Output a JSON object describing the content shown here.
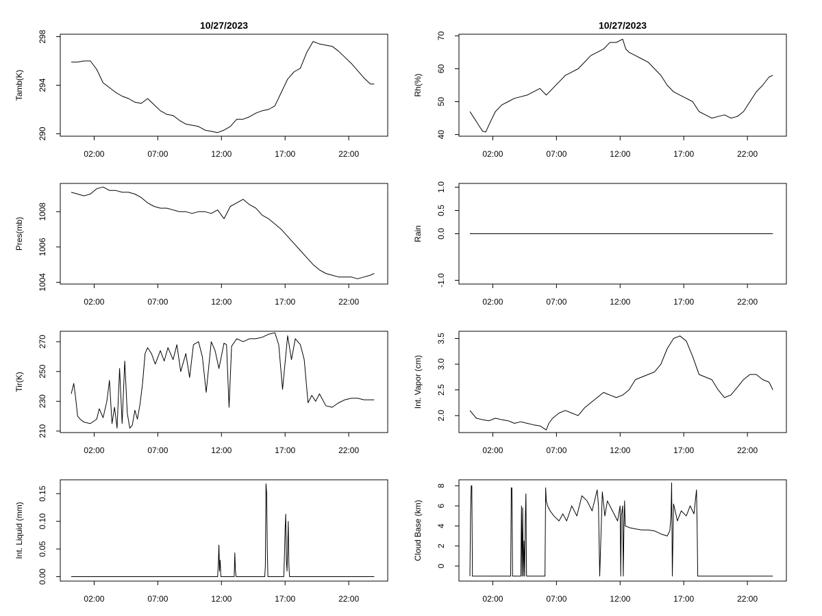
{
  "chart_data": [
    {
      "type": "line",
      "title": "10/27/2023",
      "ylabel": "Tamb(K)",
      "xlim": [
        0,
        24
      ],
      "ylim": [
        289.8,
        298.2
      ],
      "yticks": [
        290,
        294,
        298
      ],
      "x": [
        0,
        0.5,
        1,
        1.5,
        2,
        2.5,
        3,
        3.5,
        4,
        4.5,
        5,
        5.5,
        6,
        6.5,
        7,
        7.5,
        8,
        8.5,
        9,
        9.5,
        10,
        10.5,
        11,
        11.5,
        12,
        12.5,
        13,
        13.5,
        14,
        14.5,
        15,
        15.5,
        16,
        16.5,
        17,
        17.5,
        18,
        18.5,
        19,
        19.5,
        20,
        20.5,
        21,
        21.5,
        22,
        22.5,
        23,
        23.5,
        23.8
      ],
      "y": [
        295.9,
        295.9,
        296.0,
        296.0,
        295.3,
        294.2,
        293.8,
        293.4,
        293.1,
        292.9,
        292.6,
        292.5,
        292.9,
        292.4,
        291.9,
        291.6,
        291.5,
        291.1,
        290.8,
        290.7,
        290.6,
        290.3,
        290.2,
        290.1,
        290.3,
        290.6,
        291.2,
        291.2,
        291.4,
        291.7,
        291.9,
        292.0,
        292.3,
        293.4,
        294.5,
        295.1,
        295.4,
        296.7,
        297.6,
        297.4,
        297.3,
        297.2,
        296.8,
        296.3,
        295.8,
        295.2,
        294.6,
        294.1,
        294.1
      ]
    },
    {
      "type": "line",
      "title": "10/27/2023",
      "ylabel": "Rh(%)",
      "xlim": [
        0,
        24
      ],
      "ylim": [
        39.5,
        70.5
      ],
      "yticks": [
        40,
        50,
        60,
        70
      ],
      "x": [
        0,
        0.25,
        0.5,
        0.75,
        1,
        1.25,
        1.5,
        2,
        2.5,
        3,
        3.5,
        4,
        4.5,
        5,
        5.5,
        6,
        6.5,
        7,
        7.5,
        8,
        8.5,
        9,
        9.5,
        10,
        10.5,
        11,
        11.5,
        12,
        12.25,
        12.5,
        13,
        13.5,
        14,
        14.5,
        15,
        15.5,
        16,
        16.5,
        17,
        17.5,
        18,
        18.5,
        19,
        19.5,
        20,
        20.5,
        21,
        21.5,
        22,
        22.5,
        23,
        23.5,
        23.8
      ],
      "y": [
        47,
        45.5,
        44,
        42.5,
        41,
        40.8,
        43,
        47,
        49,
        50,
        51,
        51.5,
        52,
        53,
        54,
        52,
        54,
        56,
        58,
        59,
        60,
        62,
        64,
        65,
        66,
        68,
        68,
        69,
        66,
        65,
        64,
        63,
        62,
        60,
        58,
        55,
        53,
        52,
        51,
        50,
        47,
        46,
        45,
        45.5,
        46,
        45,
        45.5,
        47,
        50,
        53,
        55,
        57.5,
        58
      ]
    },
    {
      "type": "line",
      "ylabel": "Pres(mb)",
      "xlim": [
        0,
        24
      ],
      "ylim": [
        1003.9,
        1009.6
      ],
      "yticks": [
        1004,
        1006,
        1008
      ],
      "x": [
        0,
        0.5,
        1,
        1.5,
        2,
        2.5,
        3,
        3.5,
        4,
        4.5,
        5,
        5.5,
        6,
        6.5,
        7,
        7.5,
        8,
        8.5,
        9,
        9.5,
        10,
        10.5,
        11,
        11.5,
        12,
        12.5,
        13,
        13.5,
        14,
        14.5,
        15,
        15.5,
        16,
        16.5,
        17,
        17.5,
        18,
        18.5,
        19,
        19.5,
        20,
        20.5,
        21,
        21.5,
        22,
        22.5,
        23,
        23.5,
        23.8
      ],
      "y": [
        1009.1,
        1009.0,
        1008.9,
        1009.0,
        1009.3,
        1009.4,
        1009.2,
        1009.2,
        1009.1,
        1009.1,
        1009.0,
        1008.8,
        1008.5,
        1008.3,
        1008.2,
        1008.2,
        1008.1,
        1008.0,
        1008.0,
        1007.9,
        1008.0,
        1008.0,
        1007.9,
        1008.1,
        1007.6,
        1008.3,
        1008.5,
        1008.7,
        1008.4,
        1008.2,
        1007.8,
        1007.6,
        1007.3,
        1007.0,
        1006.6,
        1006.2,
        1005.8,
        1005.4,
        1005.0,
        1004.7,
        1004.5,
        1004.4,
        1004.3,
        1004.3,
        1004.3,
        1004.2,
        1004.3,
        1004.4,
        1004.5
      ]
    },
    {
      "type": "line",
      "ylabel": "Rain",
      "xlim": [
        0,
        24
      ],
      "ylim": [
        -1.08,
        1.08
      ],
      "yticks": [
        -1.0,
        0.0,
        0.5,
        1.0
      ],
      "ytick_labels": [
        "-1.0",
        "0.0",
        "0.5",
        "1.0"
      ],
      "x": [
        0,
        23.8
      ],
      "y": [
        0.0,
        0.0
      ]
    },
    {
      "type": "line",
      "ylabel": "Tir(K)",
      "xlim": [
        0,
        24
      ],
      "ylim": [
        209,
        277
      ],
      "yticks": [
        210,
        230,
        250,
        270
      ],
      "x": [
        0,
        0.2,
        0.35,
        0.5,
        0.7,
        1,
        1.5,
        2,
        2.2,
        2.5,
        2.8,
        3,
        3.2,
        3.4,
        3.6,
        3.8,
        4,
        4.2,
        4.4,
        4.6,
        4.8,
        5,
        5.2,
        5.4,
        5.6,
        5.8,
        6,
        6.3,
        6.6,
        7,
        7.3,
        7.6,
        8,
        8.3,
        8.6,
        9,
        9.3,
        9.6,
        10,
        10.3,
        10.6,
        11,
        11.3,
        11.6,
        12,
        12.2,
        12.4,
        12.6,
        13,
        13.5,
        14,
        14.5,
        15,
        15.5,
        16,
        16.3,
        16.6,
        17,
        17.3,
        17.6,
        18,
        18.3,
        18.6,
        18.9,
        19.2,
        19.5,
        20,
        20.5,
        21,
        21.5,
        22,
        22.5,
        23,
        23.5,
        23.8
      ],
      "y": [
        235,
        242,
        232,
        220,
        218,
        216,
        215,
        218,
        225,
        219,
        230,
        244,
        215,
        226,
        212,
        252,
        215,
        257,
        222,
        212,
        214,
        224,
        218,
        228,
        242,
        262,
        266,
        262,
        255,
        264,
        257,
        266,
        258,
        268,
        250,
        262,
        246,
        268,
        270,
        260,
        236,
        270,
        264,
        252,
        269,
        268,
        226,
        267,
        272,
        270,
        272,
        272,
        273,
        275,
        276,
        268,
        238,
        274,
        258,
        272,
        268,
        258,
        229,
        234,
        230,
        235,
        227,
        226,
        229,
        231,
        232,
        232,
        231,
        231,
        231
      ]
    },
    {
      "type": "line",
      "ylabel": "Int. Vapor (cm)",
      "xlim": [
        0,
        24
      ],
      "ylim": [
        1.67,
        3.64
      ],
      "yticks": [
        2.0,
        2.5,
        3.0,
        3.5
      ],
      "ytick_labels": [
        "2.0",
        "2.5",
        "3.0",
        "3.5"
      ],
      "x": [
        0,
        0.5,
        1,
        1.5,
        2,
        2.5,
        3,
        3.5,
        4,
        4.5,
        5,
        5.5,
        6,
        6.2,
        6.5,
        7,
        7.5,
        8,
        8.5,
        9,
        9.5,
        10,
        10.5,
        11,
        11.5,
        12,
        12.5,
        13,
        13.5,
        14,
        14.5,
        15,
        15.5,
        16,
        16.5,
        17,
        17.5,
        18,
        18.5,
        19,
        19.5,
        20,
        20.5,
        21,
        21.5,
        22,
        22.5,
        23,
        23.5,
        23.8
      ],
      "y": [
        2.1,
        1.95,
        1.92,
        1.9,
        1.95,
        1.92,
        1.9,
        1.85,
        1.88,
        1.85,
        1.82,
        1.8,
        1.72,
        1.85,
        1.95,
        2.05,
        2.1,
        2.05,
        2.0,
        2.15,
        2.25,
        2.35,
        2.45,
        2.4,
        2.35,
        2.4,
        2.5,
        2.7,
        2.75,
        2.8,
        2.85,
        3.0,
        3.3,
        3.5,
        3.55,
        3.45,
        3.15,
        2.8,
        2.75,
        2.7,
        2.5,
        2.35,
        2.4,
        2.55,
        2.7,
        2.8,
        2.8,
        2.7,
        2.65,
        2.5
      ]
    },
    {
      "type": "line",
      "ylabel": "Int. Liquid (mm)",
      "xlim": [
        0,
        24
      ],
      "ylim": [
        -0.008,
        0.175
      ],
      "yticks": [
        0.0,
        0.05,
        0.1,
        0.15
      ],
      "ytick_labels": [
        "0.00",
        "0.05",
        "0.10",
        "0.15"
      ],
      "x": [
        0,
        11.5,
        11.55,
        11.6,
        11.65,
        11.7,
        11.75,
        12.8,
        12.85,
        12.9,
        12.95,
        15.2,
        15.25,
        15.3,
        15.35,
        15.4,
        15.45,
        16.7,
        16.75,
        16.8,
        16.85,
        16.9,
        16.95,
        17.0,
        17.05,
        17.1,
        17.15,
        17.2,
        23.8
      ],
      "y": [
        0,
        0,
        0.02,
        0.057,
        0.01,
        0.03,
        0,
        0,
        0.043,
        0.01,
        0,
        0,
        0.02,
        0.168,
        0.15,
        0.05,
        0,
        0,
        0.04,
        0.085,
        0.113,
        0.03,
        0.01,
        0.05,
        0.1,
        0.02,
        0,
        0,
        0
      ]
    },
    {
      "type": "line",
      "ylabel": "Cloud Base (km)",
      "xlim": [
        0,
        24
      ],
      "ylim": [
        -1.5,
        8.6
      ],
      "yticks": [
        0,
        2,
        4,
        6,
        8
      ],
      "x": [
        0,
        0.05,
        0.1,
        0.15,
        0.2,
        0.25,
        0.3,
        3.2,
        3.25,
        3.3,
        3.35,
        3.4,
        4.0,
        4.05,
        4.1,
        4.15,
        4.2,
        4.25,
        4.3,
        4.35,
        4.4,
        4.45,
        4.5,
        4.55,
        4.6,
        5.9,
        5.95,
        6.0,
        6.1,
        6.3,
        6.6,
        7.0,
        7.3,
        7.6,
        8.0,
        8.4,
        8.8,
        9.2,
        9.6,
        10.0,
        10.1,
        10.2,
        10.4,
        10.6,
        10.8,
        11.2,
        11.6,
        11.8,
        11.85,
        11.9,
        12.0,
        12.05,
        12.1,
        12.15,
        12.2,
        12.6,
        13.0,
        13.5,
        14.0,
        14.5,
        15.0,
        15.5,
        15.7,
        15.8,
        15.85,
        15.9,
        16.0,
        16.3,
        16.6,
        17.0,
        17.3,
        17.6,
        17.8,
        17.85,
        17.9,
        18.0,
        23.8
      ],
      "y": [
        -1,
        5.0,
        8.0,
        8.0,
        -1,
        -1,
        -1,
        -1,
        7.8,
        7.8,
        -1,
        -1,
        -1,
        6.0,
        -1,
        5.8,
        -1,
        2.5,
        -1,
        4.5,
        7.2,
        -1,
        -1,
        -1,
        -1,
        -1,
        7.8,
        6.5,
        6.0,
        5.5,
        5.0,
        4.5,
        5.2,
        4.5,
        6.0,
        5.0,
        7.0,
        6.5,
        5.5,
        7.6,
        6.0,
        -1,
        7.4,
        5.0,
        6.5,
        5.5,
        4.5,
        6.0,
        -1,
        5.0,
        6.0,
        -1,
        4.0,
        6.5,
        4.0,
        3.8,
        3.7,
        3.6,
        3.6,
        3.5,
        3.2,
        3.0,
        3.5,
        5.0,
        8.3,
        -1,
        6.2,
        4.5,
        5.5,
        5.0,
        6.0,
        5.2,
        7.6,
        4.0,
        -1,
        -1,
        -1
      ]
    }
  ],
  "x_axis": {
    "ticks": [
      1.8,
      6.8,
      11.8,
      16.8,
      21.8
    ],
    "labels": [
      "02:00",
      "07:00",
      "12:00",
      "17:00",
      "22:00"
    ]
  }
}
